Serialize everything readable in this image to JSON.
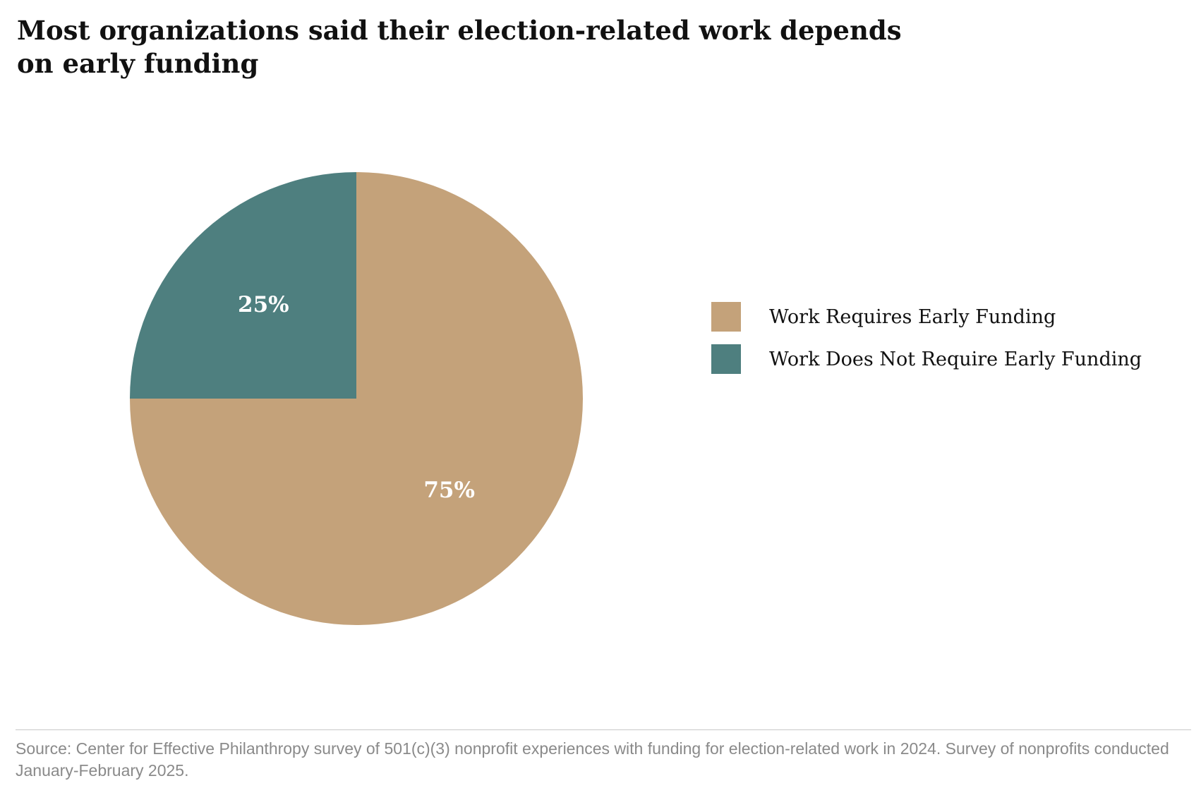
{
  "chart_data": {
    "type": "pie",
    "title": "Most organizations said their election-related work depends on early funding",
    "slices": [
      {
        "label": "Work Requires Early Funding",
        "value": 75,
        "display": "75%",
        "color": "#c4a27a"
      },
      {
        "label": "Work Does Not Require Early Funding",
        "value": 25,
        "display": "25%",
        "color": "#4e7f7f"
      }
    ],
    "legend_position": "right",
    "source": "Source: Center for Effective Philanthropy survey of 501(c)(3) nonprofit experiences with funding for election-related work in 2024. Survey of nonprofits conducted January-February 2025."
  }
}
